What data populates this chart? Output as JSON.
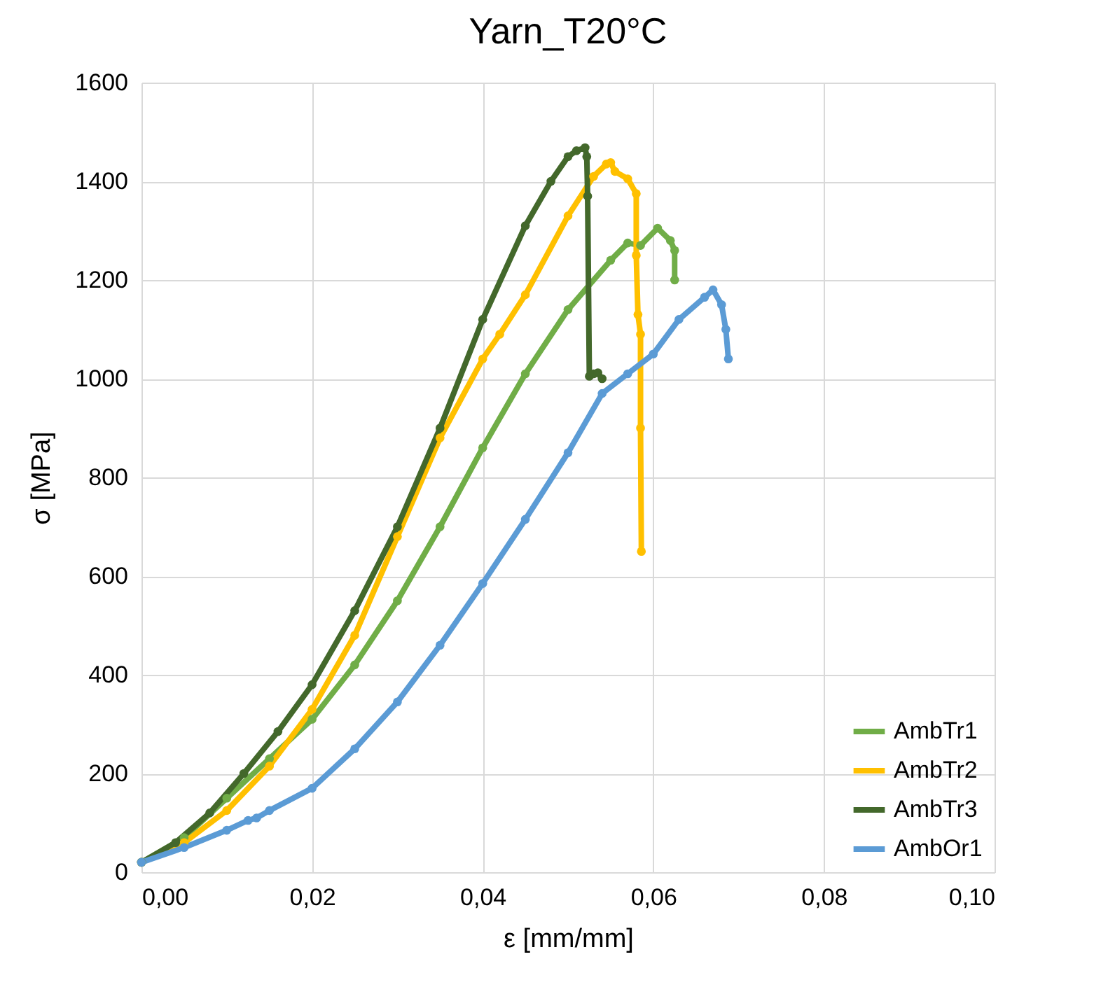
{
  "chart_data": {
    "type": "line",
    "title": "Yarn_T20°C",
    "xlabel": "ε [mm/mm]",
    "ylabel": "σ [MPa]",
    "xlim": [
      0,
      0.1
    ],
    "xticks": [
      {
        "value": 0,
        "label": "0,00"
      },
      {
        "value": 0.02,
        "label": "0,02"
      },
      {
        "value": 0.04,
        "label": "0,04"
      },
      {
        "value": 0.06,
        "label": "0,06"
      },
      {
        "value": 0.08,
        "label": "0,08"
      },
      {
        "value": 0.1,
        "label": "0,10"
      }
    ],
    "ylim": [
      0,
      1600
    ],
    "yticks": [
      0,
      200,
      400,
      600,
      800,
      1000,
      1200,
      1400,
      1600
    ],
    "grid": true,
    "legend": "bottom right",
    "marker": "circle",
    "series": [
      {
        "name": "AmbTr1",
        "color": "#70ad47",
        "x": [
          0,
          0.005,
          0.01,
          0.015,
          0.02,
          0.025,
          0.03,
          0.035,
          0.04,
          0.045,
          0.05,
          0.055,
          0.057,
          0.0585,
          0.0605,
          0.062,
          0.0625,
          0.0625
        ],
        "values": [
          20,
          70,
          150,
          230,
          310,
          420,
          550,
          700,
          860,
          1010,
          1140,
          1240,
          1275,
          1270,
          1305,
          1280,
          1260,
          1200
        ]
      },
      {
        "name": "AmbTr2",
        "color": "#ffc000",
        "x": [
          0,
          0.005,
          0.01,
          0.015,
          0.02,
          0.025,
          0.03,
          0.035,
          0.04,
          0.042,
          0.045,
          0.05,
          0.053,
          0.0545,
          0.055,
          0.0555,
          0.057,
          0.058,
          0.058,
          0.0582,
          0.0585,
          0.0585,
          0.0586
        ],
        "values": [
          20,
          60,
          125,
          215,
          330,
          480,
          680,
          880,
          1040,
          1090,
          1170,
          1330,
          1410,
          1435,
          1438,
          1420,
          1405,
          1375,
          1250,
          1130,
          1090,
          900,
          650
        ]
      },
      {
        "name": "AmbTr3",
        "color": "#43682b",
        "x": [
          0,
          0.004,
          0.008,
          0.012,
          0.016,
          0.02,
          0.025,
          0.03,
          0.035,
          0.04,
          0.045,
          0.048,
          0.05,
          0.051,
          0.052,
          0.0522,
          0.0523,
          0.0525,
          0.053,
          0.0535,
          0.054
        ],
        "values": [
          20,
          60,
          120,
          200,
          285,
          380,
          530,
          700,
          900,
          1120,
          1310,
          1400,
          1450,
          1462,
          1468,
          1450,
          1370,
          1005,
          1010,
          1012,
          1000
        ]
      },
      {
        "name": "AmbOr1",
        "color": "#5b9bd5",
        "x": [
          0,
          0.005,
          0.01,
          0.0125,
          0.0135,
          0.015,
          0.02,
          0.025,
          0.03,
          0.035,
          0.04,
          0.045,
          0.05,
          0.054,
          0.057,
          0.06,
          0.063,
          0.066,
          0.067,
          0.068,
          0.0685,
          0.0688
        ],
        "values": [
          20,
          50,
          85,
          105,
          110,
          125,
          170,
          250,
          345,
          460,
          585,
          715,
          850,
          970,
          1010,
          1050,
          1120,
          1165,
          1180,
          1150,
          1100,
          1040
        ]
      }
    ]
  }
}
